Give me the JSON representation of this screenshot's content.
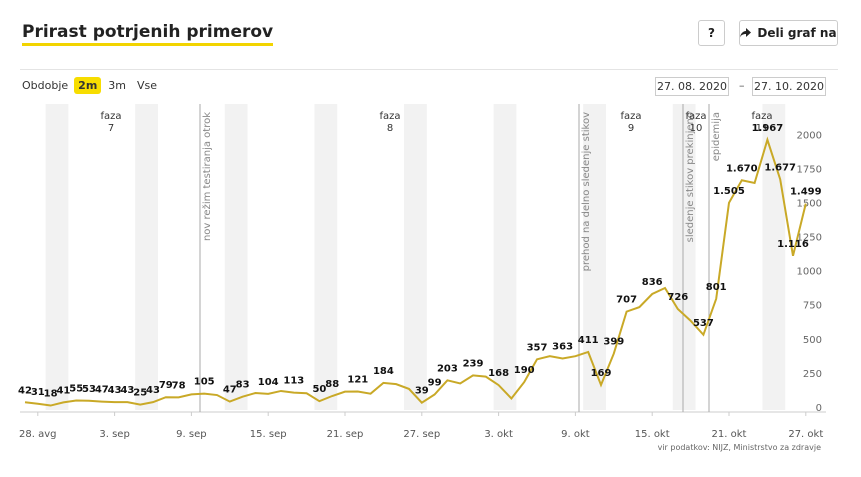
{
  "header": {
    "title": "Prirast potrjenih primerov",
    "help": "?",
    "share": "Deli graf na"
  },
  "controls": {
    "period_label": "Obdobje",
    "options": [
      "2m",
      "3m",
      "Vse"
    ],
    "selected": "2m",
    "date_from": "27. 08. 2020",
    "date_sep": "–",
    "date_to": "27. 10. 2020"
  },
  "source": "vir podatkov: NIJZ, Ministrstvo za zdravje",
  "chart_data": {
    "type": "line",
    "categories": [
      null,
      "28. avg",
      null,
      null,
      null,
      null,
      null,
      "3. sep",
      null,
      null,
      null,
      null,
      null,
      "9. sep",
      null,
      null,
      null,
      null,
      null,
      "15. sep",
      null,
      null,
      null,
      null,
      null,
      "21. sep",
      null,
      null,
      null,
      null,
      null,
      "27. sep",
      null,
      null,
      null,
      null,
      null,
      "3. okt",
      null,
      null,
      null,
      null,
      null,
      "9. okt",
      null,
      null,
      null,
      null,
      null,
      "15. okt",
      null,
      null,
      null,
      null,
      null,
      "21. okt",
      null,
      null,
      null,
      null,
      null,
      "27. okt"
    ],
    "values": [
      42,
      31,
      18,
      41,
      55,
      53,
      47,
      43,
      43,
      25,
      43,
      79,
      78,
      100,
      105,
      95,
      47,
      83,
      110,
      104,
      125,
      113,
      108,
      50,
      88,
      120,
      121,
      105,
      184,
      175,
      140,
      39,
      99,
      203,
      180,
      239,
      230,
      168,
      70,
      190,
      357,
      380,
      363,
      380,
      411,
      169,
      399,
      707,
      740,
      836,
      880,
      726,
      640,
      537,
      801,
      1505,
      1670,
      1650,
      1967,
      1677,
      1116,
      1499
    ],
    "value_labels": [
      "42",
      "31",
      "18",
      "41",
      "55",
      "53",
      "47",
      "43",
      "43",
      "25",
      "43",
      "79",
      "78",
      null,
      "105",
      null,
      "47",
      "83",
      null,
      "104",
      null,
      "113",
      null,
      "50",
      "88",
      null,
      "121",
      null,
      "184",
      null,
      null,
      "39",
      "99",
      "203",
      null,
      "239",
      null,
      "168",
      null,
      "190",
      "357",
      null,
      "363",
      null,
      "411",
      "169",
      "399",
      "707",
      null,
      "836",
      null,
      "726",
      null,
      "537",
      "801",
      "1.505",
      "1.670",
      null,
      "1.967",
      "1.677",
      "1.116",
      "1.499"
    ],
    "color": "#c9a927",
    "ylim": [
      0,
      2200
    ],
    "yticks": [
      0,
      250,
      500,
      750,
      1000,
      1250,
      1500,
      1750,
      2000
    ],
    "grid": false,
    "phases": [
      {
        "word": "faza",
        "number": "7"
      },
      {
        "word": "faza",
        "number": "8"
      },
      {
        "word": "faza",
        "number": "9"
      },
      {
        "word": "faza",
        "number": "10"
      },
      {
        "word": "faza",
        "number": "11"
      }
    ],
    "annotations": [
      "nov režim testiranja otrok",
      "prehod na delno sledenje stikov",
      "sledenje stikov prekinjeno",
      "epidemija"
    ]
  }
}
